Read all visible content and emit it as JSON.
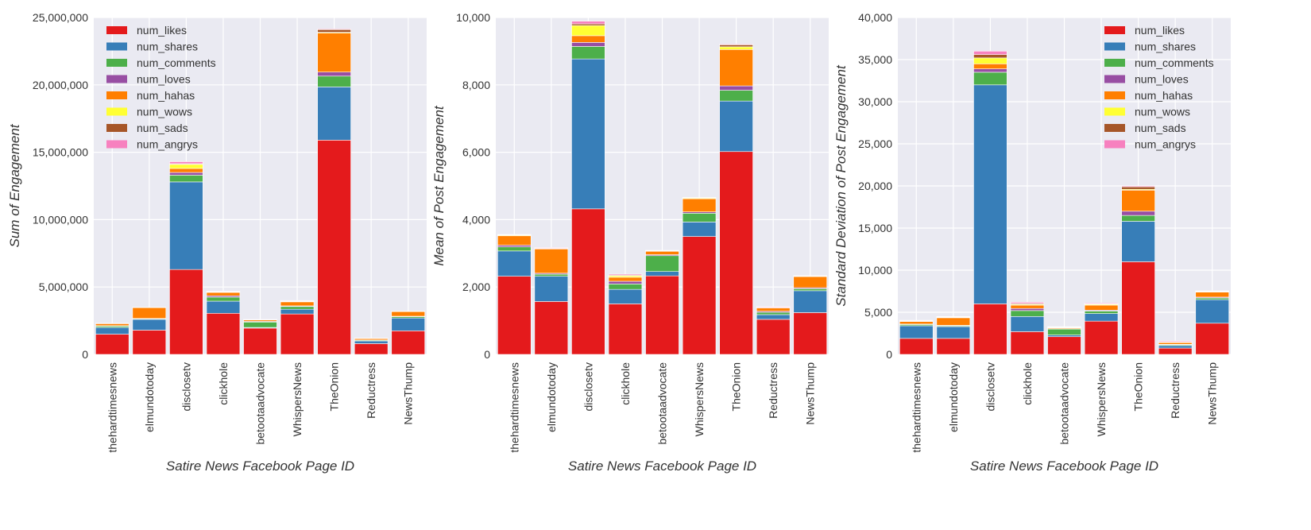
{
  "colors": {
    "plot_background": "#eaeaf2",
    "gridline": "#ffffff",
    "num_likes": "#e41a1c",
    "num_shares": "#377eb8",
    "num_comments": "#4daf4a",
    "num_loves": "#984ea3",
    "num_hahas": "#ff7f00",
    "num_wows": "#ffff33",
    "num_sads": "#a65628",
    "num_angrys": "#f781bf"
  },
  "chart_data": [
    {
      "type": "bar",
      "stacked": true,
      "title": "",
      "xlabel": "Satire News Facebook Page ID",
      "ylabel": "Sum of Engagement",
      "ylim": [
        0,
        25000000
      ],
      "yticks": [
        0,
        5000000,
        10000000,
        15000000,
        20000000,
        25000000
      ],
      "ytick_labels": [
        "0",
        "5,000,000",
        "10,000,000",
        "15,000,000",
        "20,000,000",
        "25,000,000"
      ],
      "grid": true,
      "legend_position": "top-left",
      "categories": [
        "thehardtimesnews",
        "elmundotoday",
        "disclosetv",
        "clickhole",
        "betootaadvocate",
        "WhispersNews",
        "TheOnion",
        "Reductress",
        "NewsThump"
      ],
      "series": [
        {
          "name": "num_likes",
          "values": [
            1500000,
            1800000,
            6300000,
            3050000,
            1950000,
            3000000,
            15900000,
            800000,
            1750000
          ]
        },
        {
          "name": "num_shares",
          "values": [
            500000,
            800000,
            6500000,
            900000,
            50000,
            350000,
            3950000,
            200000,
            950000
          ]
        },
        {
          "name": "num_comments",
          "values": [
            100000,
            50000,
            500000,
            300000,
            400000,
            200000,
            800000,
            50000,
            100000
          ]
        },
        {
          "name": "num_loves",
          "values": [
            30000,
            20000,
            200000,
            100000,
            50000,
            50000,
            300000,
            20000,
            30000
          ]
        },
        {
          "name": "num_hahas",
          "values": [
            150000,
            800000,
            300000,
            250000,
            100000,
            300000,
            2900000,
            100000,
            350000
          ]
        },
        {
          "name": "num_wows",
          "values": [
            10000,
            10000,
            300000,
            30000,
            10000,
            30000,
            50000,
            10000,
            10000
          ]
        },
        {
          "name": "num_sads",
          "values": [
            10000,
            10000,
            50000,
            30000,
            20000,
            30000,
            200000,
            10000,
            10000
          ]
        },
        {
          "name": "num_angrys",
          "values": [
            10000,
            10000,
            150000,
            40000,
            20000,
            40000,
            50000,
            20000,
            10000
          ]
        }
      ]
    },
    {
      "type": "bar",
      "stacked": true,
      "title": "",
      "xlabel": "Satire News Facebook Page ID",
      "ylabel": "Mean of Post Engagement",
      "ylim": [
        0,
        10000
      ],
      "yticks": [
        0,
        2000,
        4000,
        6000,
        8000,
        10000
      ],
      "ytick_labels": [
        "0",
        "2,000",
        "4,000",
        "6,000",
        "8,000",
        "10,000"
      ],
      "grid": true,
      "legend_position": "none",
      "categories": [
        "thehardtimesnews",
        "elmundotoday",
        "disclosetv",
        "clickhole",
        "betootaadvocate",
        "WhispersNews",
        "TheOnion",
        "Reductress",
        "NewsThump"
      ],
      "series": [
        {
          "name": "num_likes",
          "values": [
            2320,
            1570,
            4320,
            1500,
            2330,
            3500,
            6020,
            1040,
            1240
          ]
        },
        {
          "name": "num_shares",
          "values": [
            750,
            750,
            4450,
            430,
            130,
            430,
            1500,
            140,
            650
          ]
        },
        {
          "name": "num_comments",
          "values": [
            120,
            60,
            370,
            160,
            470,
            260,
            320,
            70,
            60
          ]
        },
        {
          "name": "num_loves",
          "values": [
            50,
            30,
            120,
            80,
            30,
            40,
            130,
            30,
            30
          ]
        },
        {
          "name": "num_hahas",
          "values": [
            280,
            720,
            200,
            120,
            100,
            390,
            1080,
            100,
            330
          ]
        },
        {
          "name": "num_wows",
          "values": [
            20,
            10,
            300,
            40,
            10,
            20,
            80,
            10,
            10
          ]
        },
        {
          "name": "num_sads",
          "values": [
            10,
            10,
            50,
            20,
            10,
            10,
            60,
            10,
            10
          ]
        },
        {
          "name": "num_angrys",
          "values": [
            10,
            20,
            80,
            30,
            10,
            10,
            20,
            20,
            10
          ]
        }
      ]
    },
    {
      "type": "bar",
      "stacked": true,
      "title": "",
      "xlabel": "Satire News Facebook Page ID",
      "ylabel": "Standard Deviation of Post Engagement",
      "ylim": [
        0,
        40000
      ],
      "yticks": [
        0,
        5000,
        10000,
        15000,
        20000,
        25000,
        30000,
        35000,
        40000
      ],
      "ytick_labels": [
        "0",
        "5,000",
        "10,000",
        "15,000",
        "20,000",
        "25,000",
        "30,000",
        "35,000",
        "40,000"
      ],
      "grid": true,
      "legend_position": "top-right",
      "categories": [
        "thehardtimesnews",
        "elmundotoday",
        "disclosetv",
        "clickhole",
        "betootaadvocate",
        "WhispersNews",
        "TheOnion",
        "Reductress",
        "NewsThump"
      ],
      "series": [
        {
          "name": "num_likes",
          "values": [
            1900,
            1900,
            6000,
            2700,
            2100,
            3950,
            11000,
            750,
            3700
          ]
        },
        {
          "name": "num_shares",
          "values": [
            1500,
            1400,
            26000,
            1800,
            200,
            900,
            4800,
            300,
            2800
          ]
        },
        {
          "name": "num_comments",
          "values": [
            150,
            100,
            1500,
            700,
            700,
            300,
            700,
            100,
            200
          ]
        },
        {
          "name": "num_loves",
          "values": [
            50,
            50,
            400,
            250,
            50,
            100,
            500,
            50,
            100
          ]
        },
        {
          "name": "num_hahas",
          "values": [
            300,
            900,
            600,
            400,
            100,
            600,
            2500,
            200,
            600
          ]
        },
        {
          "name": "num_wows",
          "values": [
            50,
            50,
            700,
            100,
            50,
            100,
            100,
            50,
            50
          ]
        },
        {
          "name": "num_sads",
          "values": [
            50,
            50,
            400,
            100,
            50,
            50,
            300,
            50,
            50
          ]
        },
        {
          "name": "num_angrys",
          "values": [
            50,
            50,
            400,
            150,
            50,
            100,
            100,
            100,
            50
          ]
        }
      ]
    }
  ]
}
